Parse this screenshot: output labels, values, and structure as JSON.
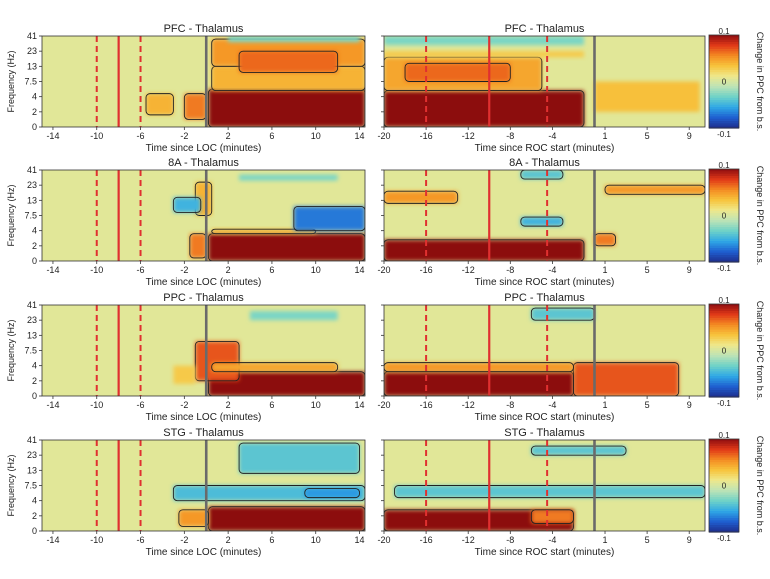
{
  "colors": {
    "colormap": [
      "#1e2d8c",
      "#1f5fd0",
      "#2fa8e6",
      "#6ed2c8",
      "#bde3b6",
      "#eee88c",
      "#f7c43c",
      "#f48a22",
      "#e03818",
      "#8c0c10"
    ],
    "loc_event": "#e03030",
    "onset": "#6a6a6a",
    "contour": "#222222"
  },
  "panel_ylabel": "Frequency (Hz)",
  "colorbar_label": "Change in PPC from b.s.",
  "colorbar_ticks": [
    "0.1",
    "0",
    "-0.1"
  ],
  "chart_data": [
    {
      "type": "heatmap",
      "title": "PFC - Thalamus",
      "region": "PFC",
      "xlabel": "Time since LOC (minutes)",
      "x_ticks": [
        "-14",
        "-10",
        "-6",
        "-2",
        "2",
        "6",
        "10",
        "14"
      ],
      "x_range": [
        -15,
        14.5
      ],
      "y_ticks": [
        "41",
        "23",
        "13",
        "7.5",
        "4",
        "2",
        "0"
      ],
      "dashed_lines": [
        -10,
        -6
      ],
      "solid_line": -8,
      "onset_line": 0,
      "clim": [
        -0.1,
        0.1
      ],
      "blobs": [
        {
          "x": [
            0.2,
            14.5
          ],
          "y": [
            0,
            2.5
          ],
          "v": 0.1
        },
        {
          "x": [
            -2,
            0
          ],
          "y": [
            0.5,
            2.2
          ],
          "v": 0.06
        },
        {
          "x": [
            -5.5,
            -3
          ],
          "y": [
            0.8,
            2.2
          ],
          "v": 0.04
        },
        {
          "x": [
            0.5,
            14.5
          ],
          "y": [
            2.4,
            4
          ],
          "v": 0.04
        },
        {
          "x": [
            0.5,
            14.5
          ],
          "y": [
            4,
            5.8
          ],
          "v": 0.05
        },
        {
          "x": [
            3,
            12
          ],
          "y": [
            3.6,
            5
          ],
          "v": 0.065
        },
        {
          "x": [
            2,
            14
          ],
          "y": [
            5.6,
            6
          ],
          "v": -0.03
        }
      ]
    },
    {
      "type": "heatmap",
      "title": "PFC - Thalamus",
      "region": "PFC",
      "xlabel": "Time since ROC start (minutes)",
      "x_ticks": [
        "-20",
        "-16",
        "-12",
        "-8",
        "-4",
        "1",
        "5",
        "9"
      ],
      "x_range": [
        -20,
        10.5
      ],
      "y_ticks": [
        "41",
        "23",
        "13",
        "7.5",
        "4",
        "2",
        "0"
      ],
      "dashed_lines": [
        -16,
        -4.5
      ],
      "solid_line": -10,
      "onset_line": 0,
      "clim": [
        -0.1,
        0.1
      ],
      "blobs": [
        {
          "x": [
            -20,
            -1
          ],
          "y": [
            0,
            2.4
          ],
          "v": 0.1
        },
        {
          "x": [
            -20,
            -5
          ],
          "y": [
            2.4,
            4.6
          ],
          "v": 0.045
        },
        {
          "x": [
            -18,
            -8
          ],
          "y": [
            3,
            4.2
          ],
          "v": 0.065
        },
        {
          "x": [
            -20,
            -1
          ],
          "y": [
            4.6,
            5
          ],
          "v": 0.03
        },
        {
          "x": [
            0,
            10
          ],
          "y": [
            1,
            3
          ],
          "v": 0.035
        },
        {
          "x": [
            -20,
            -1
          ],
          "y": [
            5.4,
            6
          ],
          "v": -0.03
        }
      ]
    },
    {
      "type": "heatmap",
      "title": "8A - Thalamus",
      "region": "8A",
      "xlabel": "Time since LOC (minutes)",
      "x_ticks": [
        "-14",
        "-10",
        "-6",
        "-2",
        "2",
        "6",
        "10",
        "14"
      ],
      "x_range": [
        -15,
        14.5
      ],
      "y_ticks": [
        "41",
        "23",
        "13",
        "7.5",
        "4",
        "2",
        "0"
      ],
      "dashed_lines": [
        -10,
        -6
      ],
      "solid_line": -8,
      "onset_line": 0,
      "clim": [
        -0.1,
        0.1
      ],
      "blobs": [
        {
          "x": [
            0.2,
            14.5
          ],
          "y": [
            0,
            1.8
          ],
          "v": 0.1
        },
        {
          "x": [
            -1.5,
            0
          ],
          "y": [
            0.2,
            1.8
          ],
          "v": 0.06
        },
        {
          "x": [
            0.5,
            10
          ],
          "y": [
            1.8,
            2.1
          ],
          "v": 0.04
        },
        {
          "x": [
            -1,
            0.5
          ],
          "y": [
            3,
            5.2
          ],
          "v": 0.04
        },
        {
          "x": [
            -3,
            -0.5
          ],
          "y": [
            3.2,
            4.2
          ],
          "v": -0.05
        },
        {
          "x": [
            8,
            14.5
          ],
          "y": [
            2,
            3.6
          ],
          "v": -0.07
        },
        {
          "x": [
            3,
            12
          ],
          "y": [
            5.3,
            5.7
          ],
          "v": -0.03
        }
      ]
    },
    {
      "type": "heatmap",
      "title": "8A - Thalamus",
      "region": "8A",
      "xlabel": "Time since ROC start (minutes)",
      "x_ticks": [
        "-20",
        "-16",
        "-12",
        "-8",
        "-4",
        "1",
        "5",
        "9"
      ],
      "x_range": [
        -20,
        10.5
      ],
      "y_ticks": [
        "41",
        "23",
        "13",
        "7.5",
        "4",
        "2",
        "0"
      ],
      "dashed_lines": [
        -16,
        -4.5
      ],
      "solid_line": -10,
      "onset_line": 0,
      "clim": [
        -0.1,
        0.1
      ],
      "blobs": [
        {
          "x": [
            -20,
            -1
          ],
          "y": [
            0,
            1.4
          ],
          "v": 0.1
        },
        {
          "x": [
            0,
            2
          ],
          "y": [
            1,
            1.8
          ],
          "v": 0.06
        },
        {
          "x": [
            -20,
            -13
          ],
          "y": [
            3.8,
            4.6
          ],
          "v": 0.05
        },
        {
          "x": [
            1,
            10.5
          ],
          "y": [
            4.4,
            5
          ],
          "v": 0.05
        },
        {
          "x": [
            -7,
            -3
          ],
          "y": [
            2.3,
            2.9
          ],
          "v": -0.05
        },
        {
          "x": [
            -7,
            -3
          ],
          "y": [
            5.4,
            6
          ],
          "v": -0.04
        }
      ]
    },
    {
      "type": "heatmap",
      "title": "PPC - Thalamus",
      "region": "PPC",
      "xlabel": "Time since LOC (minutes)",
      "x_ticks": [
        "-14",
        "-10",
        "-6",
        "-2",
        "2",
        "6",
        "10",
        "14"
      ],
      "x_range": [
        -15,
        14.5
      ],
      "y_ticks": [
        "41",
        "23",
        "13",
        "7.5",
        "4",
        "2",
        "0"
      ],
      "dashed_lines": [
        -10,
        -6
      ],
      "solid_line": -8,
      "onset_line": 0,
      "clim": [
        -0.1,
        0.1
      ],
      "blobs": [
        {
          "x": [
            0.2,
            14.5
          ],
          "y": [
            0,
            1.6
          ],
          "v": 0.1
        },
        {
          "x": [
            -1,
            3
          ],
          "y": [
            1,
            3.6
          ],
          "v": 0.07
        },
        {
          "x": [
            0.5,
            12
          ],
          "y": [
            1.6,
            2.2
          ],
          "v": 0.045
        },
        {
          "x": [
            -3,
            -1
          ],
          "y": [
            0.8,
            2
          ],
          "v": 0.03
        },
        {
          "x": [
            4,
            12
          ],
          "y": [
            5,
            5.6
          ],
          "v": -0.03
        }
      ]
    },
    {
      "type": "heatmap",
      "title": "PPC - Thalamus",
      "region": "PPC",
      "xlabel": "Time since ROC start (minutes)",
      "x_ticks": [
        "-20",
        "-16",
        "-12",
        "-8",
        "-4",
        "1",
        "5",
        "9"
      ],
      "x_range": [
        -20,
        10.5
      ],
      "y_ticks": [
        "41",
        "23",
        "13",
        "7.5",
        "4",
        "2",
        "0"
      ],
      "dashed_lines": [
        -16,
        -4.5
      ],
      "solid_line": -10,
      "onset_line": 0,
      "clim": [
        -0.1,
        0.1
      ],
      "blobs": [
        {
          "x": [
            -20,
            -2
          ],
          "y": [
            0,
            1.6
          ],
          "v": 0.1
        },
        {
          "x": [
            -2,
            8
          ],
          "y": [
            0,
            2.2
          ],
          "v": 0.07
        },
        {
          "x": [
            -20,
            -2
          ],
          "y": [
            1.6,
            2.2
          ],
          "v": 0.05
        },
        {
          "x": [
            -6,
            0
          ],
          "y": [
            5,
            5.8
          ],
          "v": -0.04
        }
      ]
    },
    {
      "type": "heatmap",
      "title": "STG - Thalamus",
      "region": "STG",
      "xlabel": "Time since LOC (minutes)",
      "x_ticks": [
        "-14",
        "-10",
        "-6",
        "-2",
        "2",
        "6",
        "10",
        "14"
      ],
      "x_range": [
        -15,
        14.5
      ],
      "y_ticks": [
        "41",
        "23",
        "13",
        "7.5",
        "4",
        "2",
        "0"
      ],
      "dashed_lines": [
        -10,
        -6
      ],
      "solid_line": -8,
      "onset_line": 0,
      "clim": [
        -0.1,
        0.1
      ],
      "blobs": [
        {
          "x": [
            0.2,
            14.5
          ],
          "y": [
            0,
            1.6
          ],
          "v": 0.1
        },
        {
          "x": [
            -2.5,
            0.2
          ],
          "y": [
            0.3,
            1.4
          ],
          "v": 0.05
        },
        {
          "x": [
            -3,
            14.5
          ],
          "y": [
            2,
            3
          ],
          "v": -0.045
        },
        {
          "x": [
            9,
            14
          ],
          "y": [
            2.2,
            2.8
          ],
          "v": -0.06
        },
        {
          "x": [
            3,
            14
          ],
          "y": [
            3.8,
            5.8
          ],
          "v": -0.04
        }
      ]
    },
    {
      "type": "heatmap",
      "title": "STG - Thalamus",
      "region": "STG",
      "xlabel": "Time since ROC start (minutes)",
      "x_ticks": [
        "-20",
        "-16",
        "-12",
        "-8",
        "-4",
        "1",
        "5",
        "9"
      ],
      "x_range": [
        -20,
        10.5
      ],
      "y_ticks": [
        "41",
        "23",
        "13",
        "7.5",
        "4",
        "2",
        "0"
      ],
      "dashed_lines": [
        -16,
        -4.5
      ],
      "solid_line": -10,
      "onset_line": 0,
      "clim": [
        -0.1,
        0.1
      ],
      "blobs": [
        {
          "x": [
            -20,
            -2
          ],
          "y": [
            0,
            1.4
          ],
          "v": 0.1
        },
        {
          "x": [
            -6,
            -2
          ],
          "y": [
            0.5,
            1.4
          ],
          "v": 0.06
        },
        {
          "x": [
            -19,
            10.5
          ],
          "y": [
            2.2,
            3
          ],
          "v": -0.04
        },
        {
          "x": [
            -6,
            3
          ],
          "y": [
            5,
            5.6
          ],
          "v": -0.04
        }
      ]
    }
  ]
}
